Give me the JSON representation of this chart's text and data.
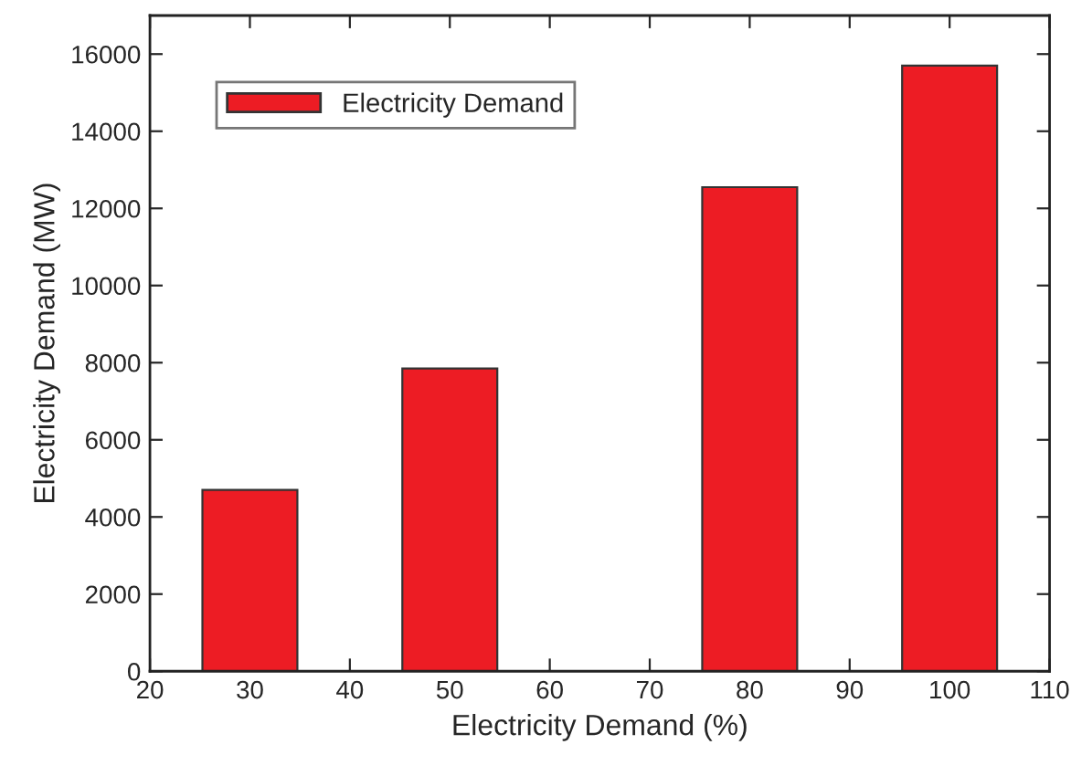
{
  "chart_data": {
    "type": "bar",
    "xlabel": "Electricity Demand (%)",
    "ylabel": "Electricity Demand (MW)",
    "x": [
      30,
      50,
      80,
      100
    ],
    "series": [
      {
        "name": "Electricity Demand",
        "color": "#ed1c24",
        "values": [
          4700,
          7850,
          12550,
          15700
        ]
      }
    ],
    "xlim": [
      20,
      110
    ],
    "xticks": [
      20,
      30,
      40,
      50,
      60,
      70,
      80,
      90,
      100,
      110
    ],
    "ylim": [
      0,
      17000
    ],
    "yticks": [
      0,
      2000,
      4000,
      6000,
      8000,
      10000,
      12000,
      14000,
      16000
    ],
    "grid": false,
    "legend": "top left"
  }
}
